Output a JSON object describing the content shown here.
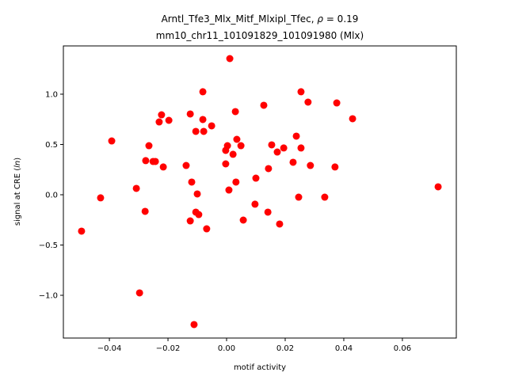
{
  "chart_data": {
    "type": "scatter",
    "title_line1_prefix": "Arntl_Tfe3_Mlx_Mitf_Mlxipl_Tfec, ",
    "title_rho_symbol": "ρ",
    "title_rho_value": " = 0.19",
    "title_line2": "mm10_chr11_101091829_101091980 (Mlx)",
    "xlabel": "motif activity",
    "ylabel_prefix": "signal at CRE (",
    "ylabel_italic": "ln",
    "ylabel_suffix": ")",
    "xlim": [
      -0.0557,
      0.0784
    ],
    "ylim": [
      -1.425,
      1.48
    ],
    "xticks": [
      -0.04,
      -0.02,
      0.0,
      0.02,
      0.04,
      0.06
    ],
    "xtick_labels": [
      "−0.04",
      "−0.02",
      "0.00",
      "0.02",
      "0.04",
      "0.06"
    ],
    "yticks": [
      -1.0,
      -0.5,
      0.0,
      0.5,
      1.0
    ],
    "ytick_labels": [
      "−1.0",
      "−0.5",
      "0.0",
      "0.5",
      "1.0"
    ],
    "grid": false,
    "marker_color": "#ff0000",
    "points": [
      [
        0.0011,
        1.354
      ],
      [
        -0.0081,
        1.024
      ],
      [
        0.003,
        0.827
      ],
      [
        0.0127,
        0.89
      ],
      [
        0.0254,
        1.024
      ],
      [
        0.0278,
        0.921
      ],
      [
        0.0376,
        0.913
      ],
      [
        0.043,
        0.756
      ],
      [
        -0.0222,
        0.795
      ],
      [
        -0.023,
        0.724
      ],
      [
        -0.0197,
        0.74
      ],
      [
        -0.0124,
        0.803
      ],
      [
        -0.0081,
        0.748
      ],
      [
        -0.0051,
        0.685
      ],
      [
        -0.0105,
        0.63
      ],
      [
        -0.0078,
        0.63
      ],
      [
        -0.0392,
        0.535
      ],
      [
        -0.0265,
        0.488
      ],
      [
        -0.0276,
        0.339
      ],
      [
        -0.0251,
        0.331
      ],
      [
        -0.0243,
        0.331
      ],
      [
        -0.0216,
        0.276
      ],
      [
        -0.0138,
        0.291
      ],
      [
        0.0035,
        0.551
      ],
      [
        0.0003,
        0.488
      ],
      [
        -0.0003,
        0.441
      ],
      [
        0.0049,
        0.488
      ],
      [
        0.0022,
        0.402
      ],
      [
        -0.0003,
        0.307
      ],
      [
        0.0238,
        0.583
      ],
      [
        0.0154,
        0.496
      ],
      [
        0.0195,
        0.465
      ],
      [
        0.0173,
        0.425
      ],
      [
        0.0254,
        0.465
      ],
      [
        0.0227,
        0.323
      ],
      [
        0.0143,
        0.26
      ],
      [
        0.0286,
        0.291
      ],
      [
        0.037,
        0.276
      ],
      [
        0.0722,
        0.079
      ],
      [
        0.01,
        0.165
      ],
      [
        0.0032,
        0.126
      ],
      [
        0.0008,
        0.047
      ],
      [
        0.0246,
        -0.024
      ],
      [
        0.0335,
        -0.024
      ],
      [
        0.0097,
        -0.094
      ],
      [
        0.0141,
        -0.173
      ],
      [
        0.0057,
        -0.252
      ],
      [
        0.0181,
        -0.291
      ],
      [
        -0.0119,
        0.126
      ],
      [
        -0.0308,
        0.063
      ],
      [
        -0.043,
        -0.031
      ],
      [
        -0.01,
        0.008
      ],
      [
        -0.0278,
        -0.165
      ],
      [
        -0.0105,
        -0.173
      ],
      [
        -0.0095,
        -0.197
      ],
      [
        -0.0124,
        -0.26
      ],
      [
        -0.0068,
        -0.339
      ],
      [
        -0.0495,
        -0.362
      ],
      [
        -0.0297,
        -0.976
      ],
      [
        -0.0111,
        -1.291
      ]
    ]
  }
}
